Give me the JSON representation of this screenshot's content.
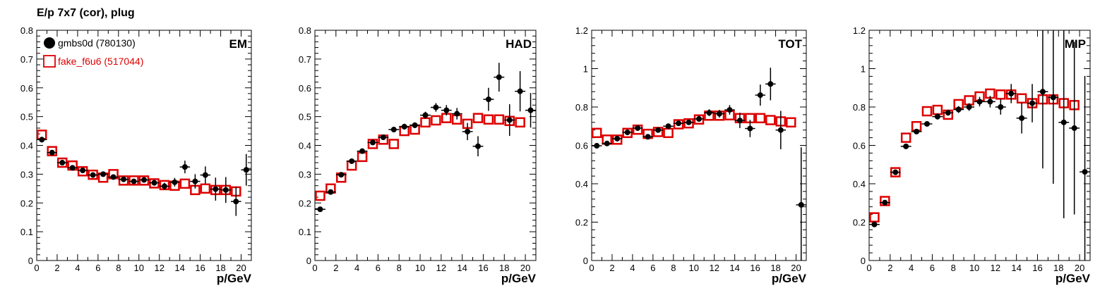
{
  "figure": {
    "title": "E/p 7x7 (cor), plug",
    "colors": {
      "data": "#000000",
      "mc": "#dd0000"
    },
    "legend": [
      {
        "label": "gmbs0d (780130)",
        "marker": "filled-circle",
        "color": "#000000"
      },
      {
        "label": "fake_f6u6 (517044)",
        "marker": "open-square",
        "color": "#dd0000"
      }
    ]
  },
  "chart_data": [
    {
      "type": "scatter",
      "panel_label": "EM",
      "xlabel": "p/GeV",
      "ylabel": "",
      "xlim": [
        0,
        21
      ],
      "ylim": [
        0,
        0.8
      ],
      "xticks": [
        0,
        2,
        4,
        6,
        8,
        10,
        12,
        14,
        16,
        18,
        20
      ],
      "yticks": [
        0,
        0.1,
        0.2,
        0.3,
        0.4,
        0.5,
        0.6,
        0.7,
        0.8
      ],
      "ytick_labels": [
        "0",
        "0.1",
        "0.2",
        "0.3",
        "0.4",
        "0.5",
        "0.6",
        "0.7",
        "0.8"
      ],
      "legend_position": "top-left",
      "series": [
        {
          "name": "gmbs0d (780130)",
          "marker": "filled-circle",
          "color": "#000000",
          "x": [
            0.5,
            1.5,
            2.5,
            3.5,
            4.5,
            5.5,
            6.5,
            7.5,
            8.5,
            9.5,
            10.5,
            11.5,
            12.5,
            13.5,
            14.5,
            15.5,
            16.5,
            17.5,
            18.5,
            19.5,
            20.5
          ],
          "y": [
            0.42,
            0.375,
            0.34,
            0.322,
            0.313,
            0.297,
            0.3,
            0.29,
            0.282,
            0.275,
            0.28,
            0.27,
            0.258,
            0.272,
            0.325,
            0.275,
            0.297,
            0.248,
            0.245,
            0.205,
            0.315
          ],
          "yerr": [
            0.01,
            0.008,
            0.008,
            0.008,
            0.008,
            0.008,
            0.008,
            0.008,
            0.008,
            0.008,
            0.008,
            0.01,
            0.012,
            0.015,
            0.022,
            0.025,
            0.03,
            0.04,
            0.045,
            0.05,
            0.055
          ]
        },
        {
          "name": "fake_f6u6 (517044)",
          "marker": "open-square",
          "color": "#dd0000",
          "x": [
            0.5,
            1.5,
            2.5,
            3.5,
            4.5,
            5.5,
            6.5,
            7.5,
            8.5,
            9.5,
            10.5,
            11.5,
            12.5,
            13.5,
            14.5,
            15.5,
            16.5,
            17.5,
            18.5,
            19.5
          ],
          "y": [
            0.437,
            0.38,
            0.34,
            0.33,
            0.31,
            0.298,
            0.288,
            0.3,
            0.278,
            0.278,
            0.278,
            0.268,
            0.262,
            0.26,
            0.267,
            0.245,
            0.25,
            0.245,
            0.245,
            0.24
          ]
        }
      ]
    },
    {
      "type": "scatter",
      "panel_label": "HAD",
      "xlabel": "p/GeV",
      "ylabel": "",
      "xlim": [
        0,
        21
      ],
      "ylim": [
        0,
        0.8
      ],
      "xticks": [
        0,
        2,
        4,
        6,
        8,
        10,
        12,
        14,
        16,
        18,
        20
      ],
      "yticks": [
        0,
        0.1,
        0.2,
        0.3,
        0.4,
        0.5,
        0.6,
        0.7,
        0.8
      ],
      "ytick_labels": [
        "0",
        "0.1",
        "0.2",
        "0.3",
        "0.4",
        "0.5",
        "0.6",
        "0.7",
        "0.8"
      ],
      "series": [
        {
          "name": "gmbs0d (780130)",
          "marker": "filled-circle",
          "color": "#000000",
          "x": [
            0.5,
            1.5,
            2.5,
            3.5,
            4.5,
            5.5,
            6.5,
            7.5,
            8.5,
            9.5,
            10.5,
            11.5,
            12.5,
            13.5,
            14.5,
            15.5,
            16.5,
            17.5,
            18.5,
            19.5,
            20.5
          ],
          "y": [
            0.178,
            0.238,
            0.298,
            0.345,
            0.38,
            0.41,
            0.428,
            0.455,
            0.465,
            0.47,
            0.505,
            0.532,
            0.522,
            0.51,
            0.448,
            0.397,
            0.56,
            0.637,
            0.488,
            0.588,
            0.522
          ],
          "yerr": [
            0.008,
            0.008,
            0.008,
            0.008,
            0.008,
            0.008,
            0.008,
            0.008,
            0.01,
            0.01,
            0.012,
            0.015,
            0.018,
            0.02,
            0.03,
            0.035,
            0.04,
            0.05,
            0.055,
            0.07,
            0.06
          ]
        },
        {
          "name": "fake_f6u6 (517044)",
          "marker": "open-square",
          "color": "#dd0000",
          "x": [
            0.5,
            1.5,
            2.5,
            3.5,
            4.5,
            5.5,
            6.5,
            7.5,
            8.5,
            9.5,
            10.5,
            11.5,
            12.5,
            13.5,
            14.5,
            15.5,
            16.5,
            17.5,
            18.5,
            19.5
          ],
          "y": [
            0.225,
            0.25,
            0.288,
            0.33,
            0.36,
            0.405,
            0.42,
            0.405,
            0.45,
            0.455,
            0.48,
            0.487,
            0.495,
            0.49,
            0.475,
            0.495,
            0.49,
            0.49,
            0.485,
            0.48
          ]
        }
      ]
    },
    {
      "type": "scatter",
      "panel_label": "TOT",
      "xlabel": "p/GeV",
      "ylabel": "",
      "xlim": [
        0,
        21
      ],
      "ylim": [
        0,
        1.2
      ],
      "xticks": [
        0,
        2,
        4,
        6,
        8,
        10,
        12,
        14,
        16,
        18,
        20
      ],
      "yticks": [
        0,
        0.2,
        0.4,
        0.6,
        0.8,
        1.0,
        1.2
      ],
      "ytick_labels": [
        "0",
        "0.2",
        "0.4",
        "0.6",
        "0.8",
        "1",
        "1.2"
      ],
      "series": [
        {
          "name": "gmbs0d (780130)",
          "marker": "filled-circle",
          "color": "#000000",
          "x": [
            0.5,
            1.5,
            2.5,
            3.5,
            4.5,
            5.5,
            6.5,
            7.5,
            8.5,
            9.5,
            10.5,
            11.5,
            12.5,
            13.5,
            14.5,
            15.5,
            16.5,
            17.5,
            18.5,
            20.5
          ],
          "y": [
            0.598,
            0.61,
            0.635,
            0.668,
            0.69,
            0.645,
            0.68,
            0.7,
            0.715,
            0.72,
            0.738,
            0.77,
            0.765,
            0.785,
            0.73,
            0.688,
            0.862,
            0.92,
            0.68,
            0.29
          ],
          "yerr": [
            0.01,
            0.01,
            0.01,
            0.01,
            0.01,
            0.01,
            0.01,
            0.01,
            0.012,
            0.012,
            0.015,
            0.018,
            0.02,
            0.025,
            0.04,
            0.045,
            0.055,
            0.085,
            0.1,
            0.3
          ]
        },
        {
          "name": "fake_f6u6 (517044)",
          "marker": "open-square",
          "color": "#dd0000",
          "x": [
            0.5,
            1.5,
            2.5,
            3.5,
            4.5,
            5.5,
            6.5,
            7.5,
            8.5,
            9.5,
            10.5,
            11.5,
            12.5,
            13.5,
            14.5,
            15.5,
            16.5,
            17.5,
            18.5,
            19.5
          ],
          "y": [
            0.665,
            0.63,
            0.63,
            0.665,
            0.682,
            0.66,
            0.67,
            0.665,
            0.71,
            0.715,
            0.735,
            0.755,
            0.755,
            0.757,
            0.742,
            0.742,
            0.742,
            0.732,
            0.725,
            0.72
          ]
        }
      ]
    },
    {
      "type": "scatter",
      "panel_label": "MIP",
      "xlabel": "p/GeV",
      "ylabel": "",
      "xlim": [
        0,
        21
      ],
      "ylim": [
        0,
        1.2
      ],
      "xticks": [
        0,
        2,
        4,
        6,
        8,
        10,
        12,
        14,
        16,
        18,
        20
      ],
      "yticks": [
        0,
        0.2,
        0.4,
        0.6,
        0.8,
        1.0,
        1.2
      ],
      "ytick_labels": [
        "0",
        "0.2",
        "0.4",
        "0.6",
        "0.8",
        "1",
        "1.2"
      ],
      "series": [
        {
          "name": "gmbs0d (780130)",
          "marker": "filled-circle",
          "color": "#000000",
          "x": [
            0.5,
            1.5,
            2.5,
            3.5,
            4.5,
            5.5,
            6.5,
            7.5,
            8.5,
            9.5,
            10.5,
            11.5,
            12.5,
            13.5,
            14.5,
            15.5,
            16.5,
            17.5,
            18.5,
            19.5,
            20.5
          ],
          "y": [
            0.188,
            0.302,
            0.46,
            0.595,
            0.672,
            0.712,
            0.75,
            0.77,
            0.787,
            0.8,
            0.828,
            0.828,
            0.8,
            0.87,
            0.742,
            0.82,
            0.88,
            0.85,
            0.72,
            0.69,
            0.462
          ],
          "yerr": [
            0.01,
            0.01,
            0.012,
            0.012,
            0.012,
            0.012,
            0.015,
            0.015,
            0.018,
            0.02,
            0.025,
            0.03,
            0.04,
            0.05,
            0.08,
            0.1,
            0.4,
            0.45,
            0.5,
            0.45,
            0.5
          ]
        },
        {
          "name": "fake_f6u6 (517044)",
          "marker": "open-square",
          "color": "#dd0000",
          "x": [
            0.5,
            1.5,
            2.5,
            3.5,
            4.5,
            5.5,
            6.5,
            7.5,
            8.5,
            9.5,
            10.5,
            11.5,
            12.5,
            13.5,
            14.5,
            15.5,
            16.5,
            17.5,
            18.5,
            19.5
          ],
          "y": [
            0.225,
            0.31,
            0.46,
            0.64,
            0.7,
            0.778,
            0.785,
            0.76,
            0.815,
            0.835,
            0.855,
            0.87,
            0.865,
            0.865,
            0.845,
            0.82,
            0.84,
            0.84,
            0.82,
            0.81
          ]
        }
      ]
    }
  ]
}
